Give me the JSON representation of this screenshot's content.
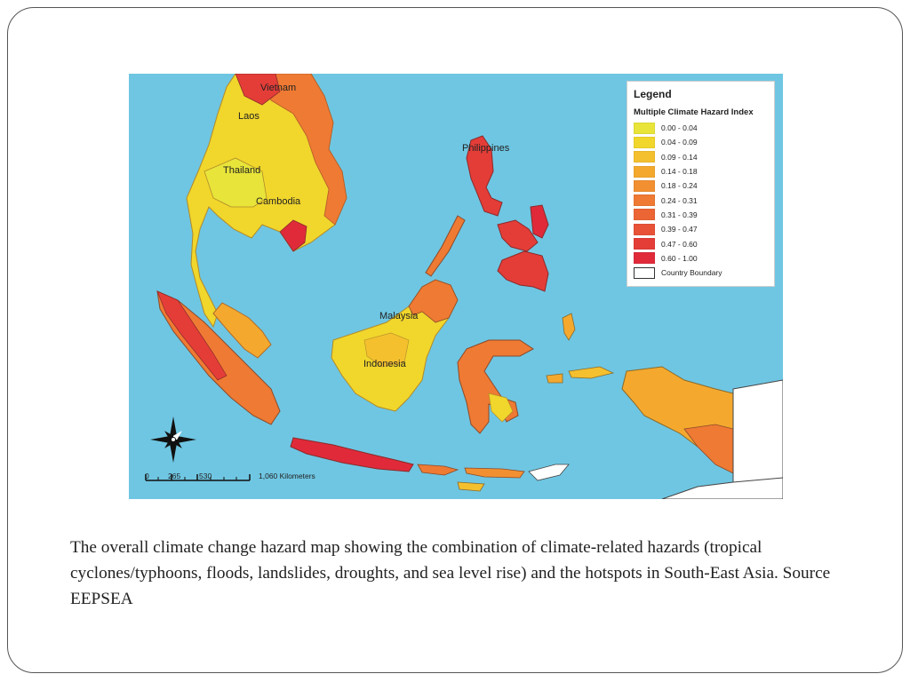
{
  "map": {
    "legend": {
      "title": "Legend",
      "subtitle": "Multiple Climate Hazard Index",
      "items": [
        {
          "label": "0.00 - 0.04",
          "color": "#e8e43a"
        },
        {
          "label": "0.04 - 0.09",
          "color": "#f1d62c"
        },
        {
          "label": "0.09 - 0.14",
          "color": "#f4c02e"
        },
        {
          "label": "0.14 - 0.18",
          "color": "#f4a92e"
        },
        {
          "label": "0.18 - 0.24",
          "color": "#f29031"
        },
        {
          "label": "0.24 - 0.31",
          "color": "#ef7a33"
        },
        {
          "label": "0.31 - 0.39",
          "color": "#ec6535"
        },
        {
          "label": "0.39 - 0.47",
          "color": "#e85237"
        },
        {
          "label": "0.47 - 0.60",
          "color": "#e43d38"
        },
        {
          "label": "0.60 - 1.00",
          "color": "#e02a3a"
        }
      ],
      "boundary_label": "Country Boundary"
    },
    "labels": {
      "vietnam": "Vietnam",
      "laos": "Laos",
      "thailand": "Thailand",
      "cambodia": "Cambodia",
      "philippines": "Philippines",
      "malaysia": "Malaysia",
      "indonesia": "Indonesia"
    },
    "scale": {
      "ticks": [
        "0",
        "265",
        "530",
        "1,060 Kilometers"
      ]
    },
    "colors": {
      "sea": "#6fc6e2",
      "other_land": "#ffffff"
    }
  },
  "caption": "The overall climate change hazard map showing the combination of climate-related hazards (tropical cyclones/typhoons, floods, landslides, droughts, and sea level rise) and the hotspots in South-East Asia. Source EEPSEA"
}
